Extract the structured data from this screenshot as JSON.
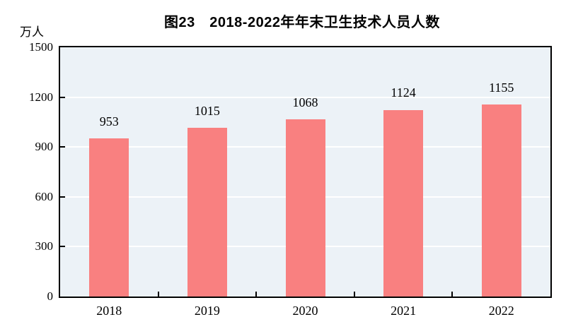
{
  "chart_data": {
    "type": "bar",
    "title": "图23　2018-2022年年末卫生技术人员人数",
    "unit_label": "万人",
    "xlabel": "",
    "ylabel": "万人",
    "categories": [
      "2018",
      "2019",
      "2020",
      "2021",
      "2022"
    ],
    "values": [
      953,
      1015,
      1068,
      1124,
      1155
    ],
    "ylim": [
      0,
      1500
    ],
    "yticks": [
      0,
      300,
      600,
      900,
      1200,
      1500
    ],
    "grid": "horizontal-white-gridlines",
    "legend": "none",
    "colors": {
      "bar": "#f98080",
      "plot_background": "#ecf2f7",
      "gridline": "#ffffff",
      "axis": "#000000",
      "text": "#000000"
    }
  }
}
